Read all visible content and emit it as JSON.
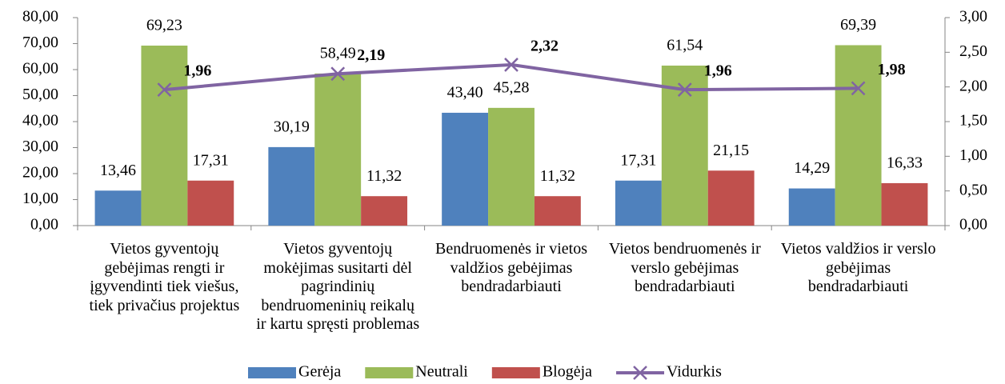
{
  "chart_data": {
    "type": "bar",
    "categories": [
      "Vietos gyventojų gebėjimas rengti ir įgyvendinti tiek viešus, tiek privačius projektus",
      "Vietos gyventojų mokėjimas susitarti dėl pagrindinių bendruomeninių reikalų ir kartu spręsti problemas",
      "Bendruomenės ir vietos valdžios gebėjimas bendradarbiauti",
      "Vietos bendruomenės ir verslo gebėjimas bendradarbiauti",
      "Vietos valdžios ir verslo gebėjimas bendradarbiauti"
    ],
    "series": [
      {
        "name": "Gerėja",
        "color": "#4f81bd",
        "values": [
          13.46,
          30.19,
          43.4,
          17.31,
          14.29
        ],
        "value_labels": [
          "13,46",
          "30,19",
          "43,40",
          "17,31",
          "14,29"
        ]
      },
      {
        "name": "Neutrali",
        "color": "#9bbb59",
        "values": [
          69.23,
          58.49,
          45.28,
          61.54,
          69.39
        ],
        "value_labels": [
          "69,23",
          "58,49",
          "45,28",
          "61,54",
          "69,39"
        ]
      },
      {
        "name": "Blogėja",
        "color": "#c0504d",
        "values": [
          17.31,
          11.32,
          11.32,
          21.15,
          16.33
        ],
        "value_labels": [
          "17,31",
          "11,32",
          "11,32",
          "21,15",
          "16,33"
        ]
      },
      {
        "name": "Vidurkis",
        "color": "#8064a2",
        "type": "line",
        "axis": "y2",
        "values": [
          1.96,
          2.19,
          2.32,
          1.96,
          1.98
        ],
        "value_labels": [
          "1,96",
          "2,19",
          "2,32",
          "1,96",
          "1,98"
        ]
      }
    ],
    "ylim": [
      0,
      80
    ],
    "yticks": [
      {
        "value": 0,
        "label": "0,00"
      },
      {
        "value": 10,
        "label": "10,00"
      },
      {
        "value": 20,
        "label": "20,00"
      },
      {
        "value": 30,
        "label": "30,00"
      },
      {
        "value": 40,
        "label": "40,00"
      },
      {
        "value": 50,
        "label": "50,00"
      },
      {
        "value": 60,
        "label": "60,00"
      },
      {
        "value": 70,
        "label": "70,00"
      },
      {
        "value": 80,
        "label": "80,00"
      }
    ],
    "y2lim": [
      0,
      3
    ],
    "y2ticks": [
      {
        "value": 0,
        "label": "0,00"
      },
      {
        "value": 0.5,
        "label": "0,50"
      },
      {
        "value": 1,
        "label": "1,00"
      },
      {
        "value": 1.5,
        "label": "1,50"
      },
      {
        "value": 2,
        "label": "2,00"
      },
      {
        "value": 2.5,
        "label": "2,50"
      },
      {
        "value": 3,
        "label": "3,00"
      }
    ],
    "legend": "bottom",
    "grid": false
  }
}
